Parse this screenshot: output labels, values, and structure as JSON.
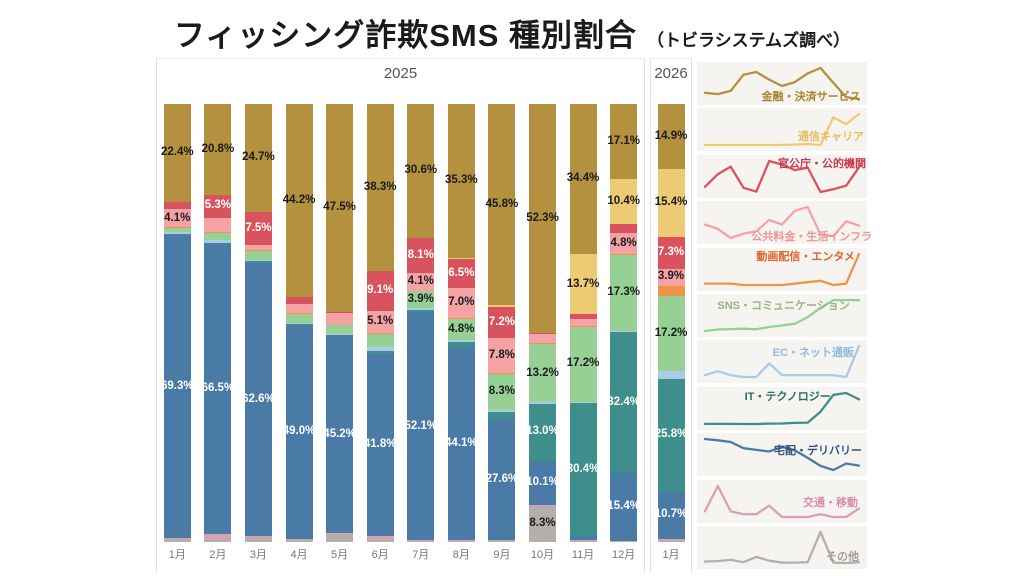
{
  "title": "フィッシング詐欺SMS 種別割合",
  "subtitle": "（トビラシステムズ調べ）",
  "panels": {
    "left_year": "2025",
    "right_year": "2026"
  },
  "chart_data": {
    "type": "bar",
    "variant": "stacked-100pct",
    "unit": "%",
    "title": "フィッシング詐欺SMS 種別割合",
    "months": [
      "1月",
      "2月",
      "3月",
      "4月",
      "5月",
      "6月",
      "7月",
      "8月",
      "9月",
      "10月",
      "11月",
      "12月",
      "1月"
    ],
    "month_year_split": 12,
    "label_threshold_pct": 3.8,
    "legend_position": "right-sparklines",
    "series": [
      {
        "name": "金融・決済サービス",
        "color": "#b3913f",
        "legend_text_color": "#a8862f",
        "value_text_color": "#1b1b1b",
        "values": [
          22.4,
          20.8,
          24.7,
          44.2,
          47.5,
          38.3,
          30.6,
          35.3,
          45.8,
          52.3,
          34.4,
          17.1,
          14.9
        ]
      },
      {
        "name": "通信キャリア",
        "color": "#edcb74",
        "legend_text_color": "#e4bd5e",
        "value_text_color": "#1b1b1b",
        "values": [
          0,
          0,
          0,
          0,
          0,
          0,
          0,
          0.2,
          0.5,
          0,
          13.7,
          10.4,
          15.4
        ]
      },
      {
        "name": "官公庁・公的機関",
        "color": "#d8535d",
        "legend_text_color": "#c63a4c",
        "value_text_color": "#ffffff",
        "values": [
          1.7,
          5.3,
          7.5,
          1.4,
          0.3,
          9.1,
          8.1,
          6.5,
          7.2,
          0.2,
          1.0,
          2.0,
          7.3
        ]
      },
      {
        "name": "公共料金・生活インフラ",
        "color": "#f4a2a3",
        "legend_text_color": "#ef9597",
        "value_text_color": "#1b1b1b",
        "values": [
          4.1,
          3.2,
          1.3,
          2.2,
          2.7,
          5.1,
          4.1,
          7.0,
          7.8,
          2.0,
          1.7,
          4.8,
          3.9
        ]
      },
      {
        "name": "動画配信・エンタメ",
        "color": "#ee9348",
        "legend_text_color": "#e0642c",
        "value_text_color": "#1b1b1b",
        "values": [
          0.2,
          0.2,
          0.2,
          0.1,
          0.1,
          0.1,
          0.1,
          0.2,
          0.3,
          0.4,
          0.1,
          0.2,
          2.3
        ]
      },
      {
        "name": "SNS・コミュニケーション",
        "color": "#97d095",
        "legend_text_color": "#94b581",
        "value_text_color": "#1b1b1b",
        "values": [
          1.0,
          1.8,
          2.0,
          2.2,
          1.9,
          3.1,
          3.9,
          4.8,
          8.3,
          13.2,
          17.2,
          17.3,
          17.2
        ]
      },
      {
        "name": "EC・ネット通販",
        "color": "#a9cbe8",
        "legend_text_color": "#8fb8dd",
        "value_text_color": "#1b1b1b",
        "values": [
          0.3,
          0.5,
          0.3,
          0.2,
          0.2,
          0.9,
          0.3,
          0.3,
          0.3,
          0.3,
          0.3,
          0.2,
          1.8
        ]
      },
      {
        "name": "IT・テクノロジー",
        "color": "#3e8e8b",
        "legend_text_color": "#23725f",
        "value_text_color": "#ffffff",
        "values": [
          0.3,
          0.3,
          0.3,
          0.2,
          0.2,
          0.6,
          0.7,
          1.3,
          1.7,
          13.0,
          30.4,
          32.4,
          25.8
        ]
      },
      {
        "name": "宅配・デリバリー",
        "color": "#4a7ba6",
        "legend_text_color": "#32527e",
        "value_text_color": "#ffffff",
        "values": [
          69.3,
          66.5,
          62.6,
          49.0,
          45.2,
          41.8,
          52.1,
          44.1,
          27.6,
          10.1,
          1.0,
          15.4,
          10.7
        ]
      },
      {
        "name": "交通・移動",
        "color": "#d9a0b5",
        "legend_text_color": "#d490ab",
        "value_text_color": "#1b1b1b",
        "values": [
          0.3,
          1.2,
          0.3,
          0.2,
          0.2,
          0.5,
          0.1,
          0.1,
          0.1,
          0.2,
          0.1,
          0.1,
          0.4
        ]
      },
      {
        "name": "その他",
        "color": "#b5aeaa",
        "legend_text_color": "#a29a95",
        "value_text_color": "#1b1b1b",
        "values": [
          0.6,
          0.7,
          1.0,
          0.4,
          1.8,
          0.8,
          0.3,
          0.3,
          0.4,
          8.3,
          0.3,
          0.2,
          0.4
        ]
      }
    ]
  }
}
